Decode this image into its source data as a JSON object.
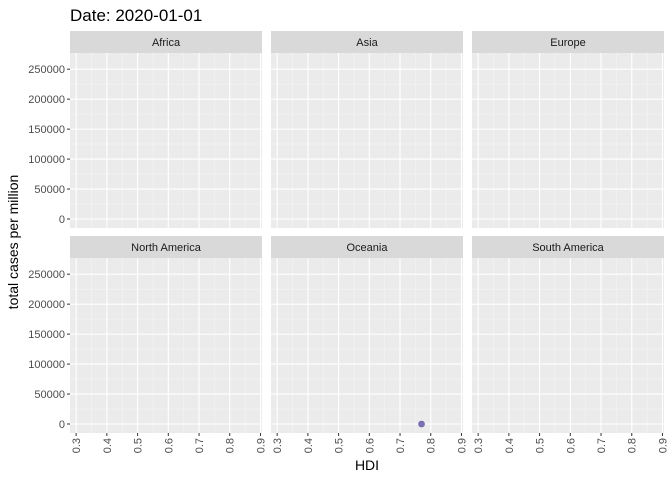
{
  "chart_data": {
    "type": "scatter",
    "title": "Date: 2020-01-01",
    "xlabel": "HDI",
    "ylabel": "total cases per million",
    "xlim": [
      0.28,
      0.905
    ],
    "ylim": [
      -15000,
      277000
    ],
    "x_ticks": [
      "0.3",
      "0.4",
      "0.5",
      "0.6",
      "0.7",
      "0.8",
      "0.9"
    ],
    "y_ticks": [
      "0",
      "50000",
      "100000",
      "150000",
      "200000",
      "250000"
    ],
    "grid": true,
    "facets": [
      {
        "name": "Africa",
        "points": []
      },
      {
        "name": "Asia",
        "points": []
      },
      {
        "name": "Europe",
        "points": []
      },
      {
        "name": "North America",
        "points": []
      },
      {
        "name": "Oceania",
        "points": [
          {
            "x": 0.77,
            "y": 0
          }
        ]
      },
      {
        "name": "South America",
        "points": []
      }
    ],
    "colors": {
      "panel_bg": "#ebebeb",
      "strip_bg": "#d9d9d9",
      "grid_major": "#ffffff",
      "grid_minor": "#f5f5f5",
      "point": "#6a5aa6"
    }
  }
}
